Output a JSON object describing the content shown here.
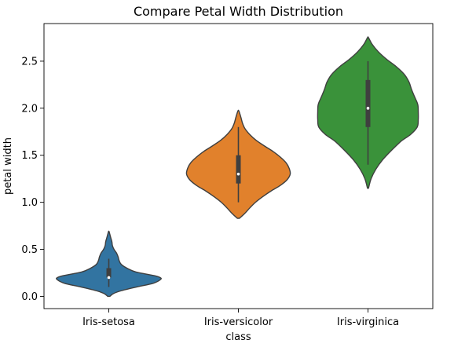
{
  "chart_data": {
    "type": "violin",
    "title": "Compare Petal Width Distribution",
    "xlabel": "class",
    "ylabel": "petal width",
    "ylim": [
      -0.13,
      2.9
    ],
    "yticks": [
      0.0,
      0.5,
      1.0,
      1.5,
      2.0,
      2.5
    ],
    "ytick_labels": [
      "0.0",
      "0.5",
      "1.0",
      "1.5",
      "2.0",
      "2.5"
    ],
    "categories": [
      "Iris-setosa",
      "Iris-versicolor",
      "Iris-virginica"
    ],
    "grid": false,
    "series": [
      {
        "category": "Iris-setosa",
        "color": "#3274a1",
        "min": 0.1,
        "q1": 0.2,
        "median": 0.2,
        "q3": 0.3,
        "max": 0.4,
        "kde_range": [
          0.0,
          0.69
        ],
        "density": [
          [
            0.0,
            0.02
          ],
          [
            0.03,
            0.09
          ],
          [
            0.06,
            0.24
          ],
          [
            0.1,
            0.54
          ],
          [
            0.14,
            0.86
          ],
          [
            0.18,
            1.0
          ],
          [
            0.2,
            0.99
          ],
          [
            0.22,
            0.88
          ],
          [
            0.26,
            0.52
          ],
          [
            0.3,
            0.35
          ],
          [
            0.34,
            0.24
          ],
          [
            0.38,
            0.2
          ],
          [
            0.42,
            0.18
          ],
          [
            0.46,
            0.15
          ],
          [
            0.5,
            0.1
          ],
          [
            0.54,
            0.07
          ],
          [
            0.58,
            0.06
          ],
          [
            0.62,
            0.04
          ],
          [
            0.66,
            0.02
          ],
          [
            0.69,
            0.005
          ]
        ]
      },
      {
        "category": "Iris-versicolor",
        "color": "#e1812c",
        "min": 1.0,
        "q1": 1.2,
        "median": 1.3,
        "q3": 1.5,
        "max": 1.8,
        "kde_range": [
          0.83,
          1.97
        ],
        "density": [
          [
            0.83,
            0.02
          ],
          [
            0.88,
            0.12
          ],
          [
            0.94,
            0.22
          ],
          [
            1.0,
            0.33
          ],
          [
            1.06,
            0.47
          ],
          [
            1.12,
            0.63
          ],
          [
            1.18,
            0.81
          ],
          [
            1.24,
            0.94
          ],
          [
            1.3,
            1.0
          ],
          [
            1.36,
            0.98
          ],
          [
            1.42,
            0.92
          ],
          [
            1.48,
            0.81
          ],
          [
            1.54,
            0.67
          ],
          [
            1.6,
            0.5
          ],
          [
            1.66,
            0.34
          ],
          [
            1.72,
            0.22
          ],
          [
            1.78,
            0.13
          ],
          [
            1.84,
            0.08
          ],
          [
            1.9,
            0.05
          ],
          [
            1.97,
            0.01
          ]
        ]
      },
      {
        "category": "Iris-virginica",
        "color": "#3a923a",
        "min": 1.4,
        "q1": 1.8,
        "median": 2.0,
        "q3": 2.3,
        "max": 2.5,
        "kde_range": [
          1.15,
          2.75
        ],
        "density": [
          [
            1.15,
            0.01
          ],
          [
            1.25,
            0.06
          ],
          [
            1.35,
            0.15
          ],
          [
            1.45,
            0.28
          ],
          [
            1.55,
            0.45
          ],
          [
            1.65,
            0.64
          ],
          [
            1.72,
            0.82
          ],
          [
            1.8,
            0.95
          ],
          [
            1.88,
            0.97
          ],
          [
            1.96,
            0.97
          ],
          [
            2.04,
            0.96
          ],
          [
            2.12,
            0.9
          ],
          [
            2.2,
            0.84
          ],
          [
            2.28,
            0.79
          ],
          [
            2.36,
            0.7
          ],
          [
            2.44,
            0.55
          ],
          [
            2.52,
            0.36
          ],
          [
            2.6,
            0.2
          ],
          [
            2.68,
            0.08
          ],
          [
            2.75,
            0.01
          ]
        ]
      }
    ]
  }
}
